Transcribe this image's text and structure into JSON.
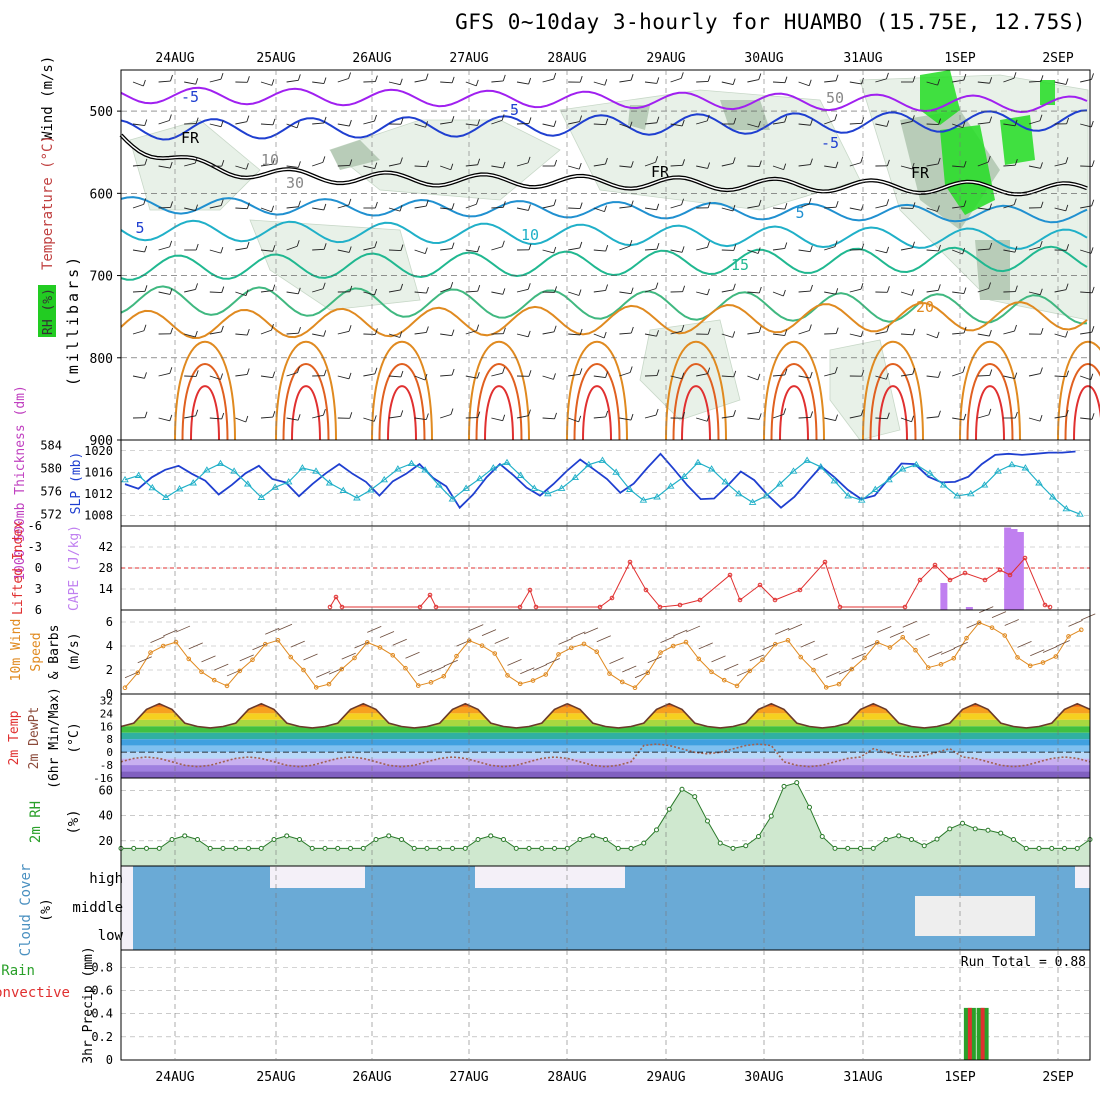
{
  "title": "GFS 0~10day 3-hourly for HUAMBO (15.75E, 12.75S)",
  "dates": [
    "24AUG",
    "25AUG",
    "26AUG",
    "27AUG",
    "28AUG",
    "29AUG",
    "30AUG",
    "31AUG",
    "1SEP",
    "2SEP"
  ],
  "colors": {
    "frame": "#000000",
    "grid": "#aaaaaa",
    "rh_fill": "#e6f0e6",
    "blue": "#1f3fd0",
    "cyan": "#20b0c8",
    "red": "#e03030",
    "orange": "#e08a20",
    "purple": "#a020f0",
    "green": "#2aa02a",
    "cloud": "#6aaad6"
  },
  "chart_data": [
    {
      "type": "contour",
      "panel": "upper-air",
      "ylabel": "(millibars)",
      "legend_labels": [
        "Wind (m/s)",
        "Temperature (°C)",
        "RH (%)"
      ],
      "y_ticks": [
        "500",
        "600",
        "700",
        "800",
        "900"
      ],
      "contour_labels": [
        "-5",
        "-5",
        "-5",
        "5",
        "5",
        "10",
        "15",
        "20",
        "FR",
        "FR",
        "FR",
        "10",
        "30",
        "50"
      ],
      "ylim": [
        900,
        450
      ]
    },
    {
      "type": "line",
      "panel": "slp-thickness",
      "ylabel_left": "1000-500mb Thickness (dm)",
      "ylabel_right": "SLP (mb)",
      "left_ticks": [
        "584",
        "580",
        "576",
        "572"
      ],
      "right_ticks": [
        "1020",
        "1016",
        "1012",
        "1008"
      ],
      "thickness_ylim": [
        570,
        585
      ],
      "slp_ylim": [
        1006,
        1022
      ],
      "series": [
        {
          "values": [
            577.3,
            576.5,
            578.5,
            579.8,
            580.5,
            579.1,
            577.9,
            575.5,
            577.2,
            579.2,
            580.5,
            578.2,
            577.6,
            575.2,
            577.3,
            579.2,
            580.8,
            579.1,
            577.7,
            575.3,
            577.8,
            579.1,
            580.8,
            578.4,
            576.9,
            573.2,
            575.5,
            578.5,
            580.8,
            578.9,
            576.7,
            575.3,
            577.3,
            579.6,
            581.6,
            579.9,
            578.2,
            575.8,
            577.4,
            580.1,
            582.6,
            579.9,
            577.1,
            574.7,
            574.8,
            577.0,
            579.5,
            578.0,
            575.4,
            573.2,
            575.1,
            577.8,
            580.4,
            578.5,
            576.3,
            574.7,
            575.3,
            578.1,
            580.9,
            580.8,
            578.6,
            577.6,
            577.7,
            578.6,
            580.8,
            582.4,
            582.6,
            582.4,
            582.6,
            582.8,
            582.8,
            583.0,
            583.2,
            583.7,
            584.0,
            584.0,
            584.0,
            584.0,
            584.0,
            584.0,
            584.0,
            584.0,
            584.0,
            584.0,
            584.0,
            584.0,
            584.0,
            584.0,
            584.0,
            584.0,
            584.0,
            584.0,
            584.0,
            584.0,
            584.0,
            584.0,
            584.0,
            584.0,
            584.0,
            584.0,
            584.0,
            584.0,
            584.0,
            584.0,
            584.0,
            584.0,
            584.0,
            584.0,
            584.0,
            584.0,
            584.0,
            584.0,
            584.0,
            584.0,
            584.0,
            584.0,
            584.0,
            584.0,
            584.0,
            584.0,
            584.0,
            584.0,
            584.0,
            584.0,
            584.0,
            584.0,
            584.0,
            584.0,
            584.0,
            584.0,
            584.0,
            584.0,
            584.0,
            584.0,
            584.0,
            584.0,
            584.0,
            584.0,
            584.0,
            584.0,
            584.0,
            584.0,
            584.0,
            584.0,
            584.0,
            584.0
          ]
        },
        {
          "values": [
            1014.6,
            1015.4,
            1013.1,
            1011.3,
            1012.9,
            1014.0,
            1016.4,
            1017.6,
            1016.2,
            1013.8,
            1011.3,
            1013.2,
            1014.2,
            1016.8,
            1016.2,
            1014.0,
            1012.6,
            1011.2,
            1012.7,
            1014.6,
            1016.6,
            1017.6,
            1016.4,
            1013.6,
            1011.0,
            1013.0,
            1014.8,
            1016.8,
            1017.8,
            1015.4,
            1013.0,
            1012.0,
            1013.0,
            1015.0,
            1017.4,
            1018.2,
            1016.0,
            1012.8,
            1010.8,
            1011.4,
            1013.4,
            1015.2,
            1017.8,
            1016.6,
            1014.2,
            1012.0,
            1010.4,
            1011.6,
            1013.8,
            1016.2,
            1018.2,
            1017.0,
            1014.4,
            1011.6,
            1010.8,
            1012.8,
            1014.6,
            1016.6,
            1017.4,
            1015.8,
            1013.6,
            1011.6,
            1012.0,
            1013.6,
            1016.2,
            1017.4,
            1016.8,
            1014.0,
            1011.4,
            1009.2,
            1008.2,
            1007.4
          ]
        }
      ]
    },
    {
      "type": "line",
      "panel": "instability",
      "ylabel_left": "Lifted Index",
      "ylabel_right": "CAPE (J/kg)",
      "left_ticks": [
        "-6",
        "-3",
        "0",
        "3",
        "6"
      ],
      "right_ticks": [
        "42",
        "28",
        "14"
      ],
      "lifted_index_ylim": [
        6,
        -6
      ],
      "cape_ylim": [
        0,
        56
      ],
      "cape_bars": [
        {
          "at": 64.5,
          "value": 18
        },
        {
          "at": 66.5,
          "value": 2
        },
        {
          "at": 69.5,
          "value": 55
        },
        {
          "at": 70.0,
          "value": 54
        },
        {
          "at": 70.5,
          "value": 52
        }
      ]
    },
    {
      "type": "line",
      "panel": "wind10m",
      "ylabel": "10m Wind Speed & Barbs (m/s)",
      "y_ticks": [
        "0",
        "2",
        "4",
        "6"
      ],
      "ylim": [
        0,
        7
      ]
    },
    {
      "type": "area",
      "panel": "temperature2m",
      "ylabel": "2m Temp 2m DewPt (6hr Min/Max) (°C)",
      "y_ticks": [
        "32",
        "24",
        "16",
        "8",
        "0",
        "-8",
        "-16"
      ],
      "ylim": [
        -16,
        36
      ]
    },
    {
      "type": "area",
      "panel": "rh2m",
      "ylabel": "2m RH (%)",
      "y_ticks": [
        "20",
        "40",
        "60"
      ],
      "ylim": [
        0,
        70
      ]
    },
    {
      "type": "bar",
      "panel": "cloud-cover",
      "ylabel": "Cloud Cover (%)",
      "levels": [
        "high",
        "middle",
        "low"
      ]
    },
    {
      "type": "bar",
      "panel": "precip",
      "ylabel": "3hr Precip (mm)",
      "ylabel_left": "Total / Rain",
      "ylabel_left2": "Convective",
      "y_ticks": [
        "0",
        "0.2",
        "0.4",
        "0.6",
        "0.8"
      ],
      "ylim": [
        0,
        0.95
      ],
      "run_total": "Run Total = 0.88",
      "bars": [
        {
          "at": 66.5,
          "total": 0.45,
          "conv": 0.45
        },
        {
          "at": 67.5,
          "total": 0.45,
          "conv": 0.45
        }
      ]
    }
  ]
}
